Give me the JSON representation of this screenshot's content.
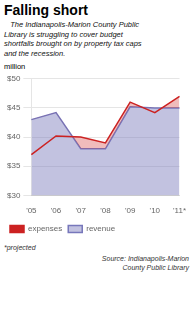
{
  "chart_data": {
    "type": "line",
    "title": "Falling short",
    "subtitle": "   The Indianapolis-Marion County Public\nLibrary is struggling to cover budget\nshortfalls brought on by property tax caps\nand the recession.",
    "y_label": "million",
    "categories": [
      "'05",
      "'06",
      "'07",
      "'08",
      "'09",
      "'10",
      "'11*"
    ],
    "series": [
      {
        "name": "revenue",
        "type": "area",
        "color": "#7777bb",
        "values": [
          43.0,
          44.2,
          38.0,
          38.0,
          45.2,
          45.0,
          45.0
        ]
      },
      {
        "name": "expenses",
        "type": "line",
        "color": "#cc2222",
        "values": [
          37.0,
          40.2,
          40.0,
          39.0,
          46.0,
          44.2,
          47.0
        ]
      }
    ],
    "ylim": [
      30,
      50
    ],
    "yticks": [
      {
        "value": 30,
        "label": "$30"
      },
      {
        "value": 35,
        "label": "$35"
      },
      {
        "value": 40,
        "label": "$40"
      },
      {
        "value": 45,
        "label": "$45"
      },
      {
        "value": 50,
        "label": "$50"
      }
    ],
    "grid": true,
    "legend": "bottom",
    "footnote": "*projected",
    "source": "Source: Indianapolis-Marion\nCounty Public Library"
  }
}
